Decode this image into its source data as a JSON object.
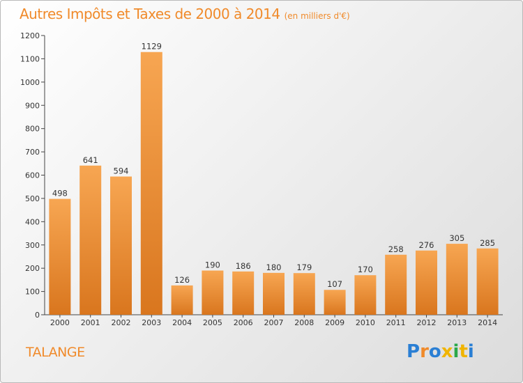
{
  "header": {
    "title": "Autres Impôts et Taxes de 2000 à 2014",
    "unit": "(en milliers d'€)"
  },
  "footer": {
    "town": "TALANGE",
    "logo": "Proxiti"
  },
  "colors": {
    "title": "#f08a2a",
    "bar_light": "#f7a652",
    "bar_dark": "#d9761e",
    "logo_letters": [
      "#2a7fd4",
      "#f08a2a",
      "#2a7fd4",
      "#f0b400",
      "#2aa84a",
      "#f0b400",
      "#2a7fd4"
    ]
  },
  "chart_data": {
    "type": "bar",
    "title": "Autres Impôts et Taxes de 2000 à 2014",
    "subtitle": "(en milliers d'€)",
    "categories": [
      "2000",
      "2001",
      "2002",
      "2003",
      "2004",
      "2005",
      "2006",
      "2007",
      "2008",
      "2009",
      "2010",
      "2011",
      "2012",
      "2013",
      "2014"
    ],
    "values": [
      498,
      641,
      594,
      1129,
      126,
      190,
      186,
      180,
      179,
      107,
      170,
      258,
      276,
      305,
      285
    ],
    "ylim": [
      0,
      1200
    ],
    "yticks": [
      0,
      100,
      200,
      300,
      400,
      500,
      600,
      700,
      800,
      900,
      1000,
      1100,
      1200
    ],
    "grid": false,
    "legend": "none"
  }
}
